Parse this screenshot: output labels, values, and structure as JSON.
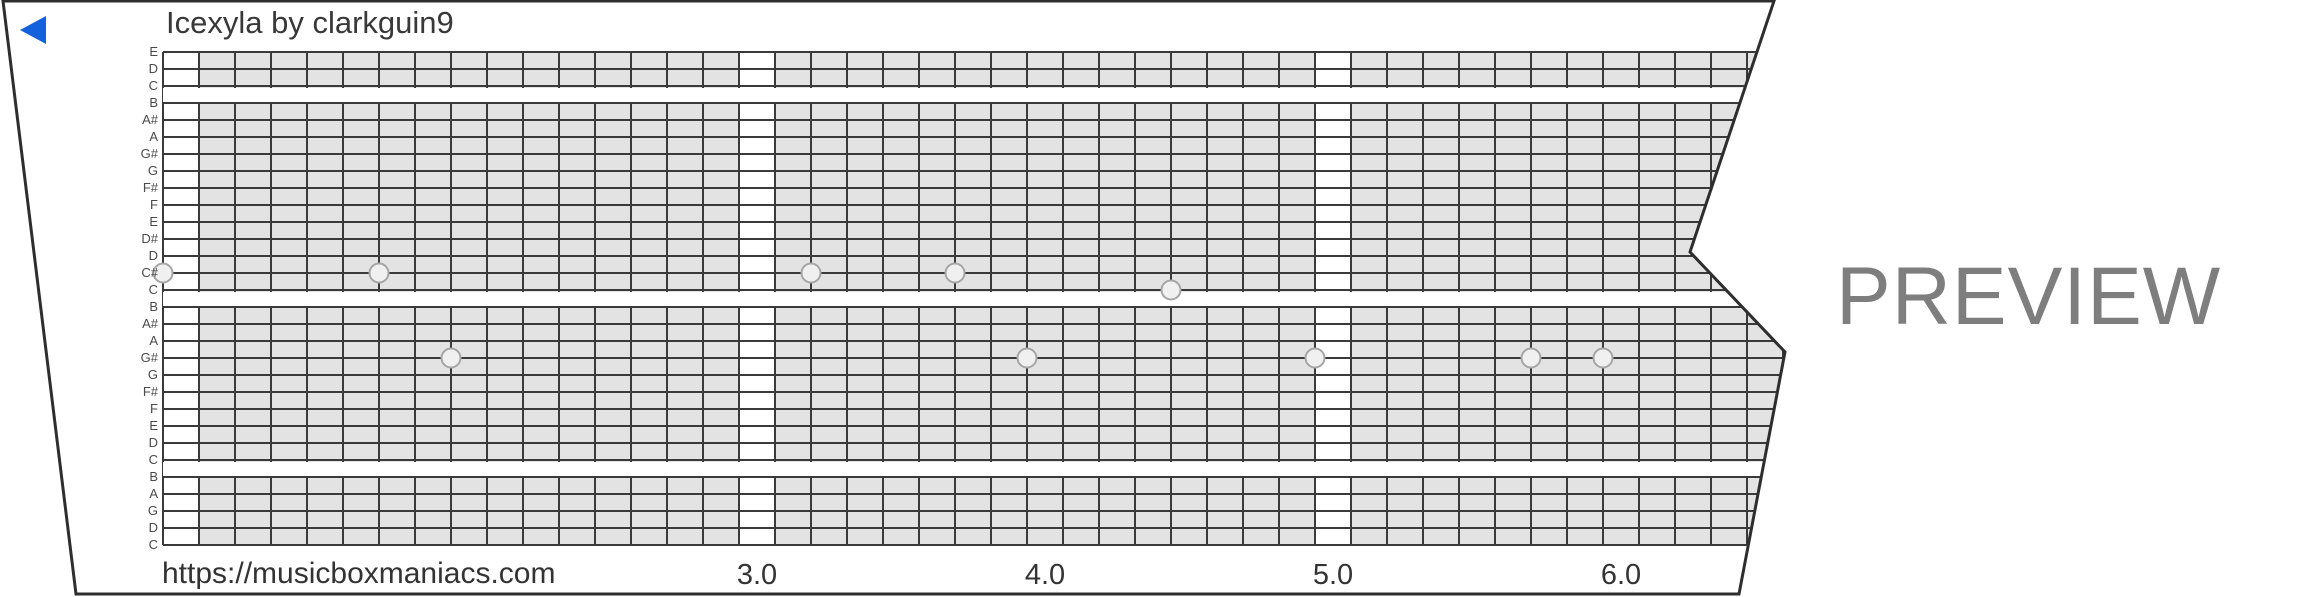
{
  "header": {
    "title": "Icexyla by clarkguin9",
    "back_icon": "left-triangle"
  },
  "watermark": {
    "label": "PREVIEW"
  },
  "footer": {
    "url": "https://musicboxmaniacs.com"
  },
  "timeline": {
    "labels": [
      {
        "text": "3.0",
        "col": 16
      },
      {
        "text": "4.0",
        "col": 24
      },
      {
        "text": "5.0",
        "col": 32
      },
      {
        "text": "6.0",
        "col": 40
      }
    ]
  },
  "grid": {
    "note_labels": [
      "E",
      "D",
      "C",
      "B",
      "A#",
      "A",
      "G#",
      "G",
      "F#",
      "F",
      "E",
      "D#",
      "D",
      "C#",
      "C",
      "B",
      "A#",
      "A",
      "G#",
      "G",
      "F#",
      "F",
      "E",
      "D",
      "C",
      "B",
      "A",
      "G",
      "D",
      "C"
    ],
    "white_col_indices": [
      0,
      16,
      32
    ],
    "white_stripe_rows": [
      2,
      14,
      24
    ],
    "n_rows": 30,
    "n_cols": 46
  },
  "notes": [
    {
      "pitch": "C#",
      "row": 13,
      "col": 0,
      "beat": 1.0
    },
    {
      "pitch": "C#",
      "row": 13,
      "col": 6,
      "beat": 1.75
    },
    {
      "pitch": "G#",
      "row": 18,
      "col": 8,
      "beat": 2.0
    },
    {
      "pitch": "C#",
      "row": 13,
      "col": 18,
      "beat": 3.25
    },
    {
      "pitch": "C#",
      "row": 13,
      "col": 22,
      "beat": 3.75
    },
    {
      "pitch": "G#",
      "row": 18,
      "col": 24,
      "beat": 4.0
    },
    {
      "pitch": "C",
      "row": 14,
      "col": 28,
      "beat": 4.5
    },
    {
      "pitch": "G#",
      "row": 18,
      "col": 32,
      "beat": 5.0
    },
    {
      "pitch": "G#",
      "row": 18,
      "col": 38,
      "beat": 5.75
    },
    {
      "pitch": "G#",
      "row": 18,
      "col": 40,
      "beat": 6.0
    }
  ],
  "colors": {
    "accent_blue": "#1461dd",
    "strip_outline": "#2e2e2e",
    "grid_cell": "#e3e3e3",
    "grid_line": "#3a3a3a",
    "dot_fill": "#f0f0f0",
    "dot_stroke": "#a6a6a6",
    "watermark_gray": "#7e7e7e"
  }
}
